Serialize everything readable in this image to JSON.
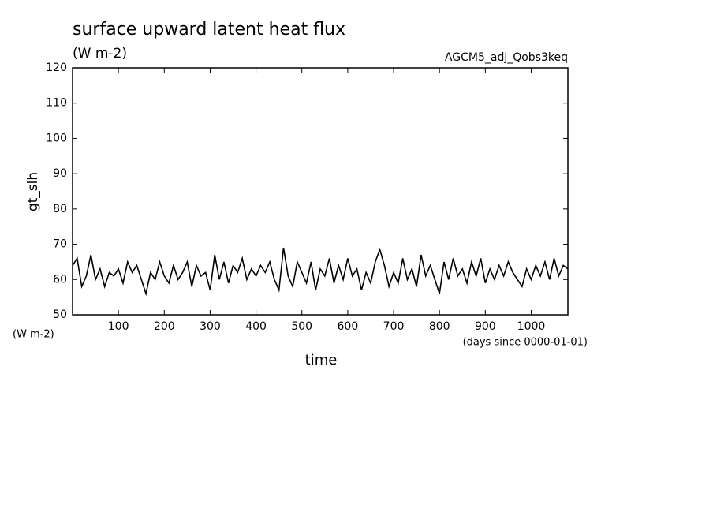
{
  "chart_data": {
    "type": "line",
    "title": "surface upward latent heat flux",
    "subtitle": "(W m-2)",
    "annotation": "AGCM5_adj_Qobs3keq",
    "ylabel": "gt_slh",
    "yunit": "(W m-2)",
    "xlabel": "time",
    "xunit": "(days since 0000-01-01)",
    "xlim": [
      0,
      1080
    ],
    "ylim": [
      50,
      120
    ],
    "xticks": [
      100,
      200,
      300,
      400,
      500,
      600,
      700,
      800,
      900,
      1000
    ],
    "yticks": [
      50,
      60,
      70,
      80,
      90,
      100,
      110,
      120
    ],
    "x": [
      0,
      10,
      20,
      30,
      40,
      50,
      60,
      70,
      80,
      90,
      100,
      110,
      120,
      130,
      140,
      150,
      160,
      170,
      180,
      190,
      200,
      210,
      220,
      230,
      240,
      250,
      260,
      270,
      280,
      290,
      300,
      310,
      320,
      330,
      340,
      350,
      360,
      370,
      380,
      390,
      400,
      410,
      420,
      430,
      440,
      450,
      460,
      470,
      480,
      490,
      500,
      510,
      520,
      530,
      540,
      550,
      560,
      570,
      580,
      590,
      600,
      610,
      620,
      630,
      640,
      650,
      660,
      670,
      680,
      690,
      700,
      710,
      720,
      730,
      740,
      750,
      760,
      770,
      780,
      790,
      800,
      810,
      820,
      830,
      840,
      850,
      860,
      870,
      880,
      890,
      900,
      910,
      920,
      930,
      940,
      950,
      960,
      970,
      980,
      990,
      1000,
      1010,
      1020,
      1030,
      1040,
      1050,
      1060,
      1070,
      1080
    ],
    "series": [
      {
        "color": "#000000",
        "values": [
          64,
          66,
          58,
          61,
          67,
          60,
          63,
          58,
          62,
          61,
          63,
          59,
          65,
          62,
          64,
          60,
          56,
          62,
          60,
          65,
          61,
          59,
          64,
          60,
          62,
          65,
          58,
          64,
          61,
          62,
          57,
          67,
          60,
          65,
          59,
          64,
          62,
          66,
          60,
          63,
          61,
          64,
          62,
          65,
          60,
          57,
          69,
          61,
          58,
          65,
          62,
          59,
          65,
          57,
          63,
          61,
          66,
          59,
          64,
          60,
          66,
          61,
          63,
          57,
          62,
          59,
          65,
          68.5,
          64,
          58,
          62,
          59,
          66,
          60,
          63,
          58,
          67,
          61,
          64,
          60,
          56,
          65,
          60,
          66,
          61,
          63,
          59,
          65,
          61,
          66,
          59,
          63,
          60,
          64,
          61,
          65,
          62,
          60,
          58,
          63,
          60,
          64,
          61,
          65,
          60,
          66,
          61,
          64,
          63
        ]
      }
    ]
  }
}
